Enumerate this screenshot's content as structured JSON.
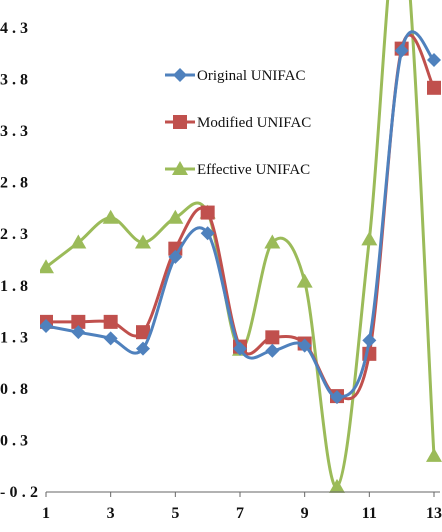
{
  "chart_data": {
    "type": "line",
    "x": [
      1,
      2,
      3,
      4,
      5,
      6,
      7,
      8,
      9,
      10,
      11,
      12,
      13
    ],
    "xticks": [
      "1",
      "3",
      "5",
      "7",
      "9",
      "11",
      "13"
    ],
    "yticks": [
      "-0.2",
      "0.3",
      "0.8",
      "1.3",
      "1.8",
      "2.3",
      "2.8",
      "3.3",
      "3.8",
      "4.3"
    ],
    "ylim": [
      -0.2,
      4.3
    ],
    "xlim": [
      1,
      13
    ],
    "smooth": true,
    "legend_position": "top-right",
    "series": [
      {
        "name": "Original UNIFAC",
        "color": "#4f81bd",
        "marker": "diamond",
        "values": [
          1.41,
          1.35,
          1.29,
          1.19,
          2.08,
          2.31,
          1.19,
          1.17,
          1.22,
          0.72,
          1.27,
          4.08,
          3.99
        ]
      },
      {
        "name": "Modified UNIFAC",
        "color": "#c0504d",
        "marker": "square",
        "values": [
          1.45,
          1.45,
          1.45,
          1.35,
          2.16,
          2.51,
          1.21,
          1.3,
          1.24,
          0.73,
          1.14,
          4.1,
          3.72
        ]
      },
      {
        "name": "Effective UNIFAC",
        "color": "#9bbb59",
        "marker": "triangle",
        "values": [
          1.98,
          2.22,
          2.46,
          2.22,
          2.46,
          2.51,
          1.18,
          2.22,
          1.84,
          -0.15,
          2.25,
          5.4,
          0.15
        ]
      }
    ]
  }
}
